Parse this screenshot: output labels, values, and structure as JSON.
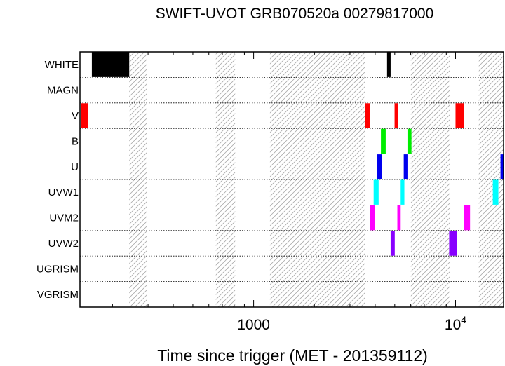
{
  "chart_data": {
    "type": "timeline",
    "title": "SWIFT-UVOT GRB070520a 00279817000",
    "xlabel": "Time since trigger (MET - 201359112)",
    "x_scale": "log",
    "xlim": [
      138,
      17300
    ],
    "x_ticks": [
      {
        "value": 1000,
        "label": "1000",
        "base": "",
        "exp": ""
      },
      {
        "value": 10000,
        "label": "",
        "base": "10",
        "exp": "4"
      }
    ],
    "rows": [
      "WHITE",
      "MAGN",
      "V",
      "B",
      "U",
      "UVW1",
      "UVM2",
      "UVW2",
      "UGRISM",
      "VGRISM"
    ],
    "colors": {
      "WHITE": "#000000",
      "MAGN": "#000000",
      "V": "#ff0000",
      "B": "#00ee00",
      "U": "#0000ee",
      "UVW1": "#00ffff",
      "UVM2": "#ff00ff",
      "UVW2": "#8800ff",
      "UGRISM": "#000000",
      "VGRISM": "#000000"
    },
    "gaps": [
      [
        242,
        297
      ],
      [
        650,
        810
      ],
      [
        1205,
        3560
      ],
      [
        6010,
        9370
      ],
      [
        13050,
        17300
      ]
    ],
    "exposures": [
      {
        "filter": "WHITE",
        "start": 158,
        "end": 242
      },
      {
        "filter": "WHITE",
        "start": 4580,
        "end": 4770
      },
      {
        "filter": "V",
        "start": 140,
        "end": 151
      },
      {
        "filter": "V",
        "start": 3560,
        "end": 3780
      },
      {
        "filter": "V",
        "start": 4990,
        "end": 5200
      },
      {
        "filter": "V",
        "start": 10000,
        "end": 11000
      },
      {
        "filter": "B",
        "start": 4270,
        "end": 4510
      },
      {
        "filter": "B",
        "start": 5780,
        "end": 6050
      },
      {
        "filter": "U",
        "start": 4090,
        "end": 4320
      },
      {
        "filter": "U",
        "start": 5540,
        "end": 5780
      },
      {
        "filter": "U",
        "start": 16700,
        "end": 17300
      },
      {
        "filter": "UVW1",
        "start": 3930,
        "end": 4160
      },
      {
        "filter": "UVW1",
        "start": 5350,
        "end": 5580
      },
      {
        "filter": "UVW1",
        "start": 15300,
        "end": 16300
      },
      {
        "filter": "UVM2",
        "start": 3780,
        "end": 4000
      },
      {
        "filter": "UVM2",
        "start": 5150,
        "end": 5350
      },
      {
        "filter": "UVM2",
        "start": 11000,
        "end": 11800
      },
      {
        "filter": "UVW2",
        "start": 4770,
        "end": 5000
      },
      {
        "filter": "UVW2",
        "start": 9300,
        "end": 10200
      }
    ]
  }
}
